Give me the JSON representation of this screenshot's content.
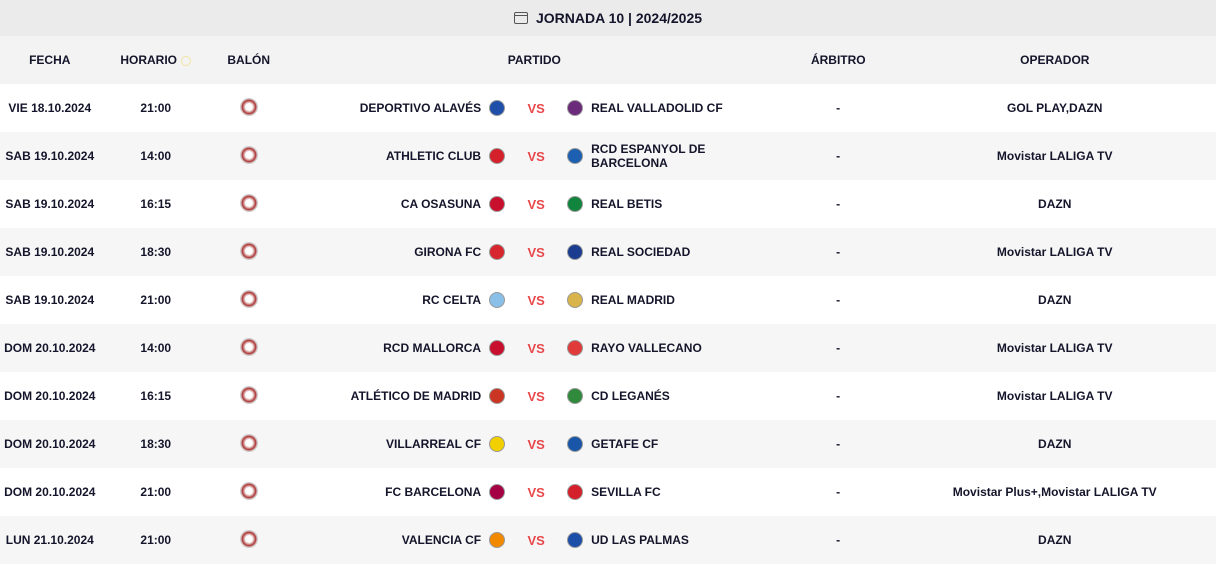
{
  "title": "JORNADA 10 | 2024/2025",
  "headers": {
    "fecha": "FECHA",
    "horario": "HORARIO",
    "balon": "BALÓN",
    "partido": "PARTIDO",
    "arbitro": "ÁRBITRO",
    "operador": "OPERADOR"
  },
  "vs_label": "VS",
  "colors": {
    "vs": "#e8484b",
    "text": "#14142b"
  },
  "matches": [
    {
      "fecha": "VIE 18.10.2024",
      "hora": "21:00",
      "home": "DEPORTIVO ALAVÉS",
      "away": "REAL VALLADOLID CF",
      "arbitro": "-",
      "operador": "GOL PLAY,DAZN",
      "hc": "#1f4fa8",
      "ac": "#6b2a7a"
    },
    {
      "fecha": "SAB 19.10.2024",
      "hora": "14:00",
      "home": "ATHLETIC CLUB",
      "away": "RCD ESPANYOL DE BARCELONA",
      "arbitro": "-",
      "operador": "Movistar LALIGA TV",
      "hc": "#d4202a",
      "ac": "#1d5fb0"
    },
    {
      "fecha": "SAB 19.10.2024",
      "hora": "16:15",
      "home": "CA OSASUNA",
      "away": "REAL BETIS",
      "arbitro": "-",
      "operador": "DAZN",
      "hc": "#c8102e",
      "ac": "#11843d"
    },
    {
      "fecha": "SAB 19.10.2024",
      "hora": "18:30",
      "home": "GIRONA FC",
      "away": "REAL SOCIEDAD",
      "arbitro": "-",
      "operador": "Movistar LALIGA TV",
      "hc": "#d7262e",
      "ac": "#1a3d8f"
    },
    {
      "fecha": "SAB 19.10.2024",
      "hora": "21:00",
      "home": "RC CELTA",
      "away": "REAL MADRID",
      "arbitro": "-",
      "operador": "DAZN",
      "hc": "#8ac0e8",
      "ac": "#d9b44a"
    },
    {
      "fecha": "DOM 20.10.2024",
      "hora": "14:00",
      "home": "RCD MALLORCA",
      "away": "RAYO VALLECANO",
      "arbitro": "-",
      "operador": "Movistar LALIGA TV",
      "hc": "#c8102e",
      "ac": "#e03a3a"
    },
    {
      "fecha": "DOM 20.10.2024",
      "hora": "16:15",
      "home": "ATLÉTICO DE MADRID",
      "away": "CD LEGANÉS",
      "arbitro": "-",
      "operador": "Movistar LALIGA TV",
      "hc": "#cb3524",
      "ac": "#2f8a3c"
    },
    {
      "fecha": "DOM 20.10.2024",
      "hora": "18:30",
      "home": "VILLARREAL CF",
      "away": "GETAFE CF",
      "arbitro": "-",
      "operador": "DAZN",
      "hc": "#f2d000",
      "ac": "#1a56a8"
    },
    {
      "fecha": "DOM 20.10.2024",
      "hora": "21:00",
      "home": "FC BARCELONA",
      "away": "SEVILLA FC",
      "arbitro": "-",
      "operador": "Movistar Plus+,Movistar LALIGA TV",
      "hc": "#a50044",
      "ac": "#d4202a"
    },
    {
      "fecha": "LUN 21.10.2024",
      "hora": "21:00",
      "home": "VALENCIA CF",
      "away": "UD LAS PALMAS",
      "arbitro": "-",
      "operador": "DAZN",
      "hc": "#f18a00",
      "ac": "#1d4fa8"
    }
  ]
}
